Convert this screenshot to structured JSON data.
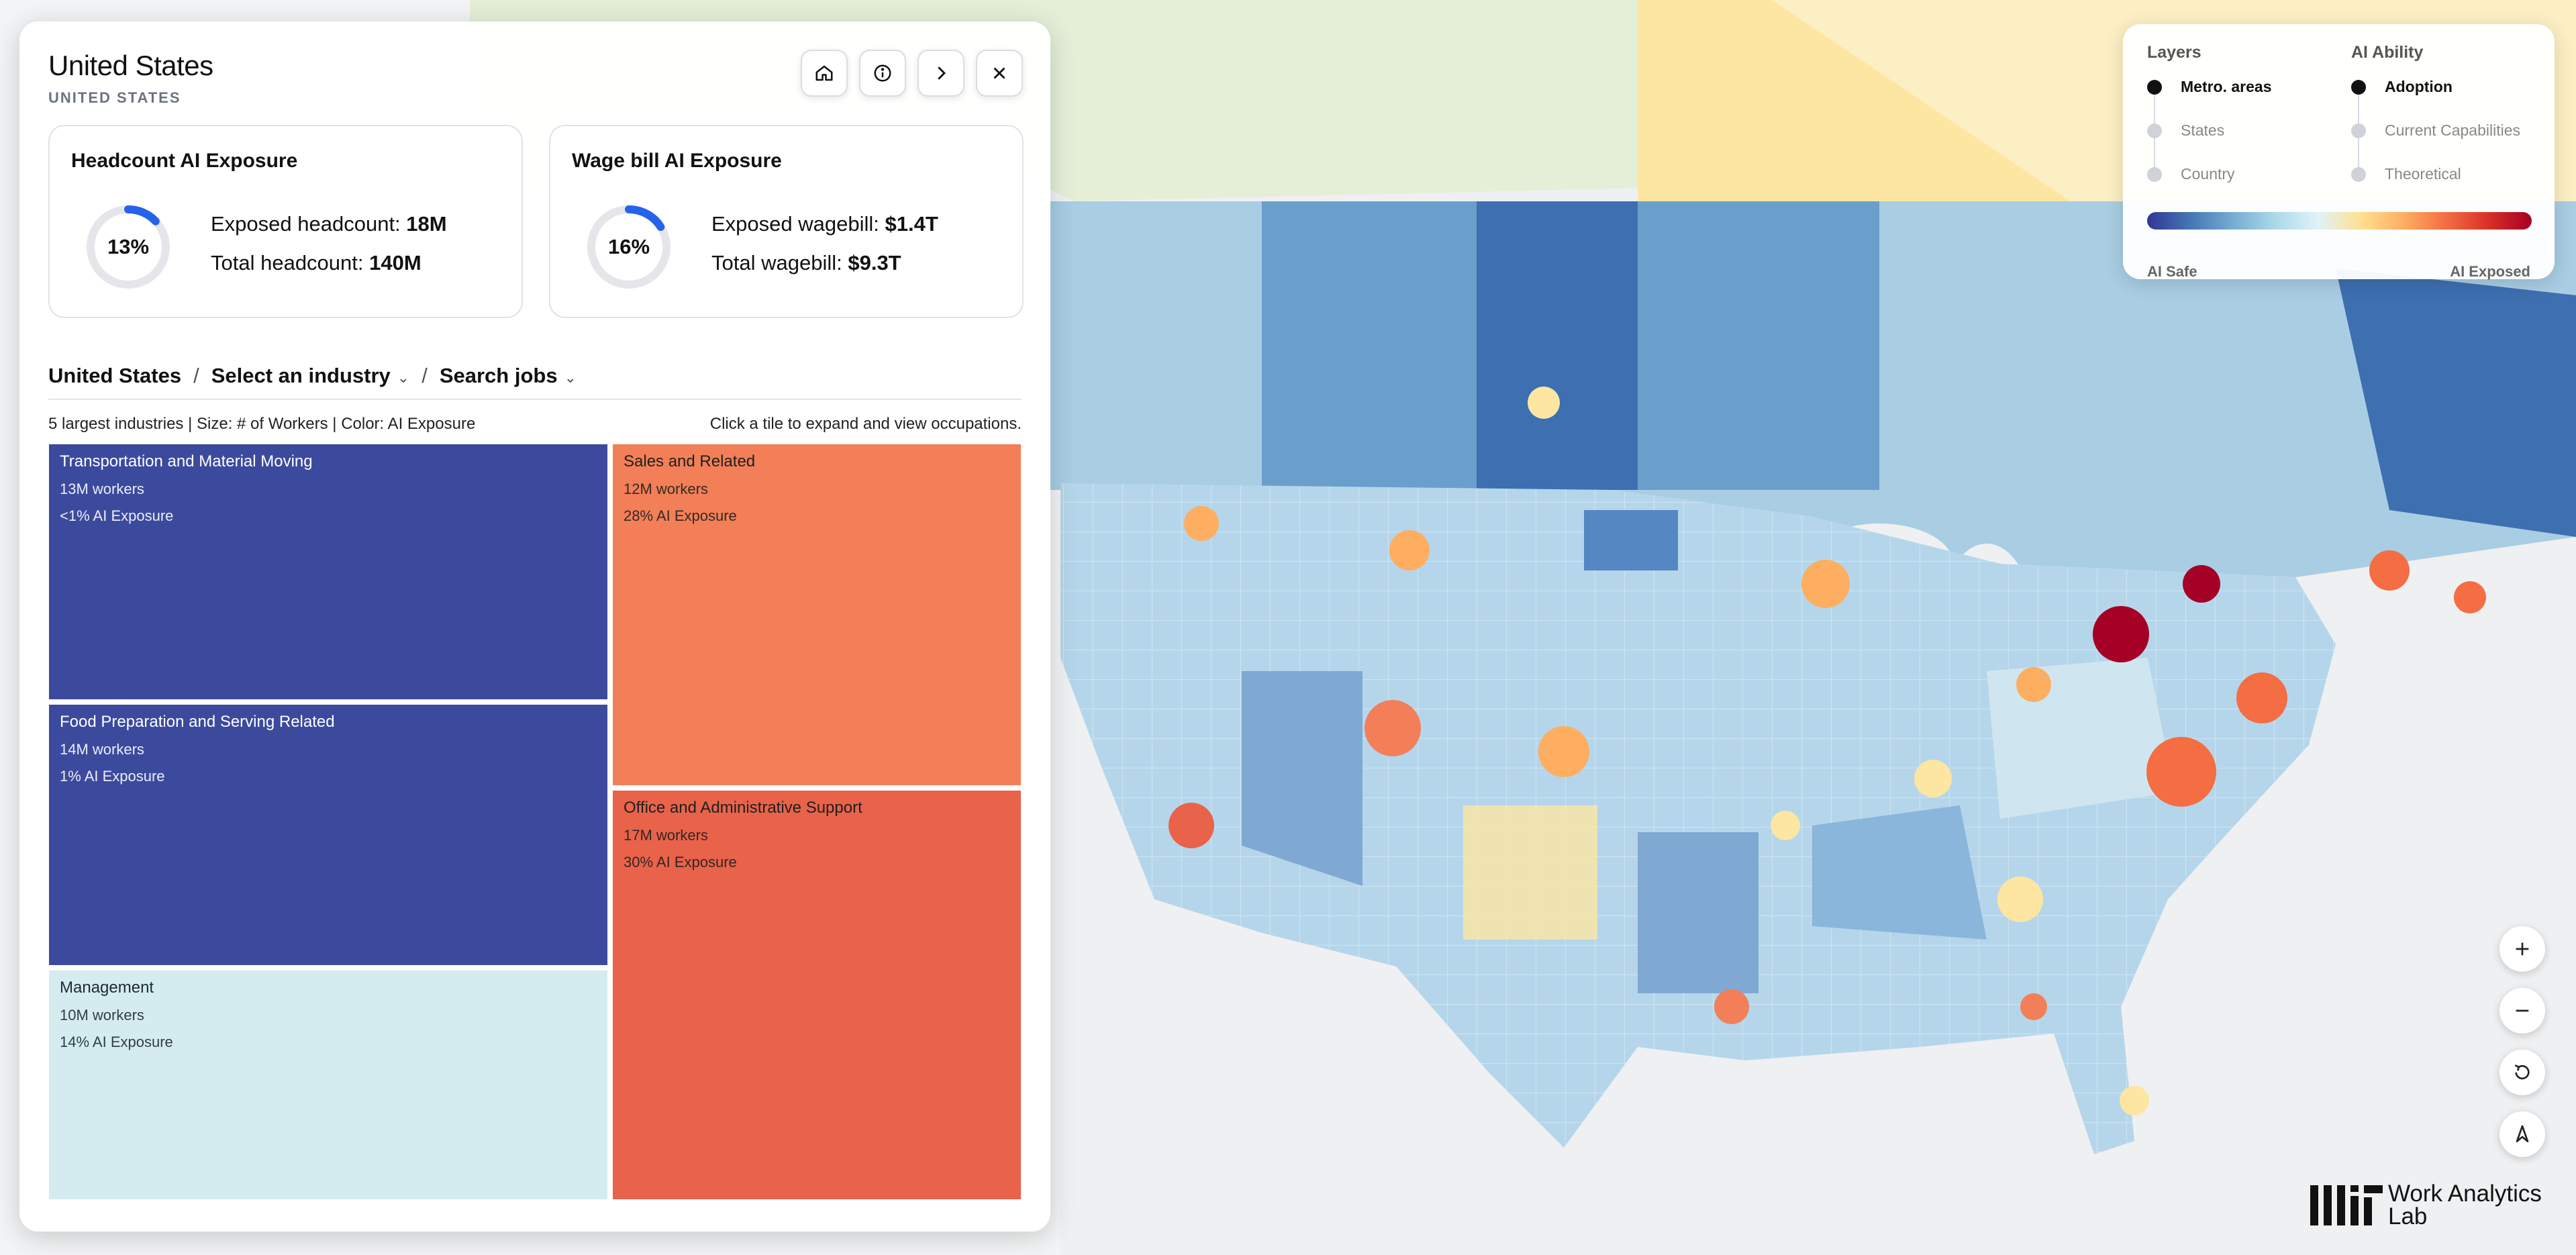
{
  "panel": {
    "title": "United States",
    "subtitle": "UNITED STATES",
    "toolbar": [
      {
        "icon": "home-icon"
      },
      {
        "icon": "info-icon"
      },
      {
        "icon": "chevron-right-icon"
      },
      {
        "icon": "close-icon"
      }
    ]
  },
  "cards": {
    "headcount": {
      "title": "Headcount AI Exposure",
      "percent_label": "13%",
      "percent_value": 0.13,
      "exposed_label": "Exposed headcount: ",
      "exposed_value": "18M",
      "total_label": "Total headcount: ",
      "total_value": "140M"
    },
    "wagebill": {
      "title": "Wage bill AI Exposure",
      "percent_label": "16%",
      "percent_value": 0.16,
      "exposed_label": "Exposed wagebill: ",
      "exposed_value": "$1.4T",
      "total_label": "Total wagebill: ",
      "total_value": "$9.3T"
    }
  },
  "breadcrumb": {
    "root": "United States",
    "industry": "Select an industry",
    "jobs": "Search jobs",
    "separator": "/"
  },
  "treemap": {
    "caption": "5 largest industries | Size: # of Workers | Color: AI Exposure",
    "hint": "Click a tile to expand and view occupations.",
    "tiles": [
      {
        "name": "Transportation and Material Moving",
        "workers": "13M workers",
        "exposure": "<1% AI Exposure",
        "color": "#3c4a9e"
      },
      {
        "name": "Food Preparation and Serving Related",
        "workers": "14M workers",
        "exposure": "1% AI Exposure",
        "color": "#3c4a9e"
      },
      {
        "name": "Management",
        "workers": "10M workers",
        "exposure": "14% AI Exposure",
        "color": "#d4ecef"
      },
      {
        "name": "Sales and Related",
        "workers": "12M workers",
        "exposure": "28% AI Exposure",
        "color": "#f27f57"
      },
      {
        "name": "Office and Administrative Support",
        "workers": "17M workers",
        "exposure": "30% AI Exposure",
        "color": "#e8634a"
      }
    ]
  },
  "legend": {
    "layers_title": "Layers",
    "layers": [
      "Metro. areas",
      "States",
      "Country"
    ],
    "ability_title": "AI Ability",
    "abilities": [
      "Adoption",
      "Current Capabilities",
      "Theoretical"
    ],
    "low_label": "AI Safe",
    "high_label": "AI Exposed"
  },
  "map_controls": [
    {
      "icon": "zoom-in-icon"
    },
    {
      "icon": "zoom-out-icon"
    },
    {
      "icon": "reset-icon"
    },
    {
      "icon": "compass-icon"
    }
  ],
  "brand": {
    "line1": "Work Analytics",
    "line2": "Lab"
  }
}
